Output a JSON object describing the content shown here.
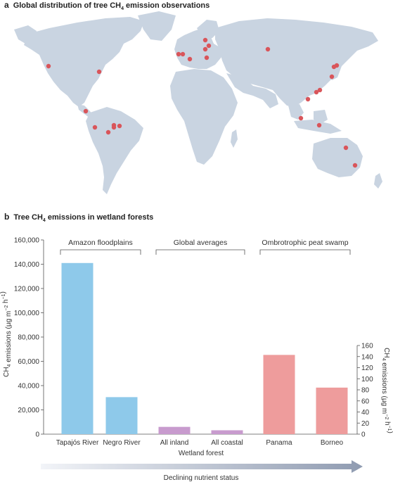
{
  "panel_a": {
    "letter": "a",
    "title_pre": "Global distribution of tree CH",
    "title_sub": "4",
    "title_post": " emission observations",
    "marker_color": "#d9555a",
    "land_color": "#c9d4e1"
  },
  "panel_b": {
    "letter": "b",
    "title_pre": "Tree CH",
    "title_sub": "4",
    "title_post": " emissions in wetland forests"
  },
  "chart_data": {
    "type": "bar",
    "categories": [
      "Tapajós River",
      "Negro River",
      "All inland",
      "All coastal",
      "Panama",
      "Borneo"
    ],
    "values_left_axis": [
      141000,
      30500,
      6000,
      3200,
      null,
      null
    ],
    "values_right_axis": [
      null,
      null,
      null,
      null,
      143,
      84
    ],
    "groups": [
      {
        "label": "Amazon floodplains",
        "categories": [
          "Tapajós River",
          "Negro River"
        ],
        "color": "#8ec9ea"
      },
      {
        "label": "Global averages",
        "categories": [
          "All inland",
          "All coastal"
        ],
        "color": "#c89bce"
      },
      {
        "label": "Ombrotrophic peat swamp",
        "categories": [
          "Panama",
          "Borneo"
        ],
        "color": "#ee9c9c"
      }
    ],
    "xlabel": "Wetland forest",
    "ylabel_left": "CH4 emissions (µg m−2 h−1)",
    "ylabel_right": "CH4 emissions (µg m−2 h−1)",
    "ylim_left": [
      0,
      160000
    ],
    "ylim_right": [
      0,
      160
    ],
    "left_ticks": [
      "0",
      "20,000",
      "40,000",
      "60,000",
      "80,000",
      "100,000",
      "120,000",
      "140,000",
      "160,000"
    ],
    "right_ticks": [
      "0",
      "20",
      "40",
      "60",
      "80",
      "100",
      "120",
      "140",
      "160"
    ],
    "arrow_label": "Declining nutrient status"
  }
}
